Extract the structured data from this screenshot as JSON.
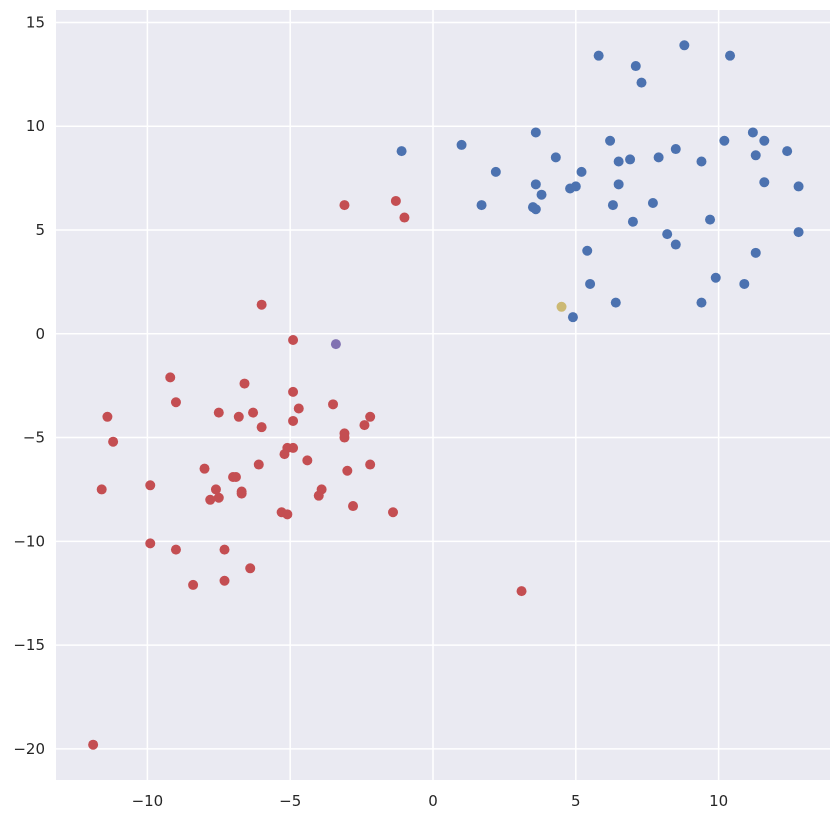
{
  "chart_data": {
    "type": "scatter",
    "title": "",
    "xlabel": "",
    "ylabel": "",
    "xlim": [
      -13.2,
      13.9
    ],
    "ylim": [
      -21.5,
      15.6
    ],
    "grid": true,
    "x_ticks": [
      -10,
      -5,
      0,
      5,
      10
    ],
    "y_ticks": [
      15,
      10,
      5,
      0,
      -5,
      -10,
      -15,
      -20
    ],
    "x_tick_labels": [
      "−10",
      "−5",
      "0",
      "5",
      "10"
    ],
    "y_tick_labels": [
      "15",
      "10",
      "5",
      "0",
      "−5",
      "−10",
      "−15",
      "−20"
    ],
    "colors": {
      "background": "#eaeaf2",
      "grid": "#ffffff",
      "blue": "#4c72b0",
      "red": "#c44e52",
      "purple": "#8172b2",
      "yellow": "#ccb974"
    },
    "series": [
      {
        "color": "#4c72b0",
        "points": [
          [
            5.8,
            13.4
          ],
          [
            8.8,
            13.9
          ],
          [
            10.4,
            13.4
          ],
          [
            7.1,
            12.9
          ],
          [
            7.3,
            12.1
          ],
          [
            3.6,
            9.7
          ],
          [
            6.2,
            9.3
          ],
          [
            11.2,
            9.7
          ],
          [
            10.2,
            9.3
          ],
          [
            11.6,
            9.3
          ],
          [
            -1.1,
            8.8
          ],
          [
            1.0,
            9.1
          ],
          [
            4.3,
            8.5
          ],
          [
            8.5,
            8.9
          ],
          [
            12.4,
            8.8
          ],
          [
            11.3,
            8.6
          ],
          [
            7.9,
            8.5
          ],
          [
            6.9,
            8.4
          ],
          [
            6.5,
            8.3
          ],
          [
            9.4,
            8.3
          ],
          [
            2.2,
            7.8
          ],
          [
            5.2,
            7.8
          ],
          [
            3.6,
            7.2
          ],
          [
            6.5,
            7.2
          ],
          [
            11.6,
            7.3
          ],
          [
            12.8,
            7.1
          ],
          [
            4.8,
            7.0
          ],
          [
            5.0,
            7.1
          ],
          [
            3.8,
            6.7
          ],
          [
            7.7,
            6.3
          ],
          [
            1.7,
            6.2
          ],
          [
            3.5,
            6.1
          ],
          [
            3.6,
            6.0
          ],
          [
            6.3,
            6.2
          ],
          [
            7.0,
            5.4
          ],
          [
            9.7,
            5.5
          ],
          [
            8.2,
            4.8
          ],
          [
            12.8,
            4.9
          ],
          [
            8.5,
            4.3
          ],
          [
            5.4,
            4.0
          ],
          [
            11.3,
            3.9
          ],
          [
            9.9,
            2.7
          ],
          [
            5.5,
            2.4
          ],
          [
            10.9,
            2.4
          ],
          [
            6.4,
            1.5
          ],
          [
            9.4,
            1.5
          ],
          [
            4.9,
            0.8
          ]
        ]
      },
      {
        "color": "#c44e52",
        "points": [
          [
            -3.1,
            6.2
          ],
          [
            -1.3,
            6.4
          ],
          [
            -1.0,
            5.6
          ],
          [
            -6.0,
            1.4
          ],
          [
            -4.9,
            -0.3
          ],
          [
            -9.2,
            -2.1
          ],
          [
            -6.6,
            -2.4
          ],
          [
            -4.9,
            -2.8
          ],
          [
            -9.0,
            -3.3
          ],
          [
            -4.7,
            -3.6
          ],
          [
            -3.5,
            -3.4
          ],
          [
            -11.4,
            -4.0
          ],
          [
            -7.5,
            -3.8
          ],
          [
            -6.8,
            -4.0
          ],
          [
            -6.3,
            -3.8
          ],
          [
            -2.2,
            -4.0
          ],
          [
            -4.9,
            -4.2
          ],
          [
            -6.0,
            -4.5
          ],
          [
            -2.4,
            -4.4
          ],
          [
            -11.2,
            -5.2
          ],
          [
            -3.1,
            -4.8
          ],
          [
            -3.1,
            -5.0
          ],
          [
            -5.1,
            -5.5
          ],
          [
            -4.9,
            -5.5
          ],
          [
            -5.2,
            -5.8
          ],
          [
            -4.4,
            -6.1
          ],
          [
            -6.1,
            -6.3
          ],
          [
            -2.2,
            -6.3
          ],
          [
            -8.0,
            -6.5
          ],
          [
            -3.0,
            -6.6
          ],
          [
            -7.0,
            -6.9
          ],
          [
            -6.9,
            -6.9
          ],
          [
            -11.6,
            -7.5
          ],
          [
            -9.9,
            -7.3
          ],
          [
            -7.6,
            -7.5
          ],
          [
            -6.7,
            -7.6
          ],
          [
            -6.7,
            -7.7
          ],
          [
            -3.9,
            -7.5
          ],
          [
            -7.5,
            -7.9
          ],
          [
            -7.8,
            -8.0
          ],
          [
            -4.0,
            -7.8
          ],
          [
            -2.8,
            -8.3
          ],
          [
            -5.3,
            -8.6
          ],
          [
            -5.1,
            -8.7
          ],
          [
            -1.4,
            -8.6
          ],
          [
            -9.9,
            -10.1
          ],
          [
            -9.0,
            -10.4
          ],
          [
            -7.3,
            -10.4
          ],
          [
            -6.4,
            -11.3
          ],
          [
            -8.4,
            -12.1
          ],
          [
            -7.3,
            -11.9
          ],
          [
            3.1,
            -12.4
          ],
          [
            -11.9,
            -19.8
          ]
        ]
      },
      {
        "color": "#8172b2",
        "points": [
          [
            -3.4,
            -0.5
          ]
        ]
      },
      {
        "color": "#ccb974",
        "points": [
          [
            4.5,
            1.3
          ]
        ]
      }
    ]
  }
}
